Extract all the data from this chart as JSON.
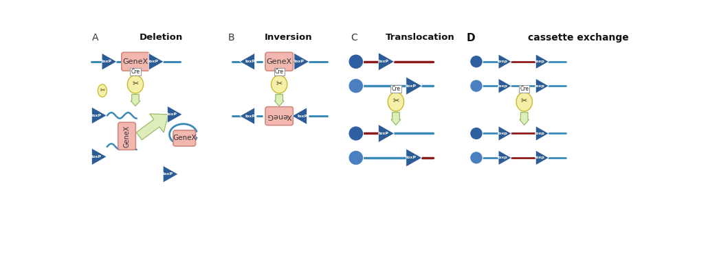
{
  "bg_color": "#ffffff",
  "blue_tri": "#2b5c96",
  "blue_line": "#3a8ab8",
  "red_line": "#8b1a1a",
  "genex_fill": "#f2b8b0",
  "genex_edge": "#d08880",
  "cre_fill": "#f5f0a8",
  "cre_edge": "#c8b830",
  "arrow_fill": "#ddeebb",
  "arrow_edge": "#99bb66",
  "circle_dark": "#2e5fa0",
  "circle_light": "#4a80c0",
  "panel_titles": [
    "Deletion",
    "Inversion",
    "Translocation",
    "cassette exchange"
  ],
  "panel_labels": [
    "A",
    "B",
    "C",
    "D"
  ]
}
